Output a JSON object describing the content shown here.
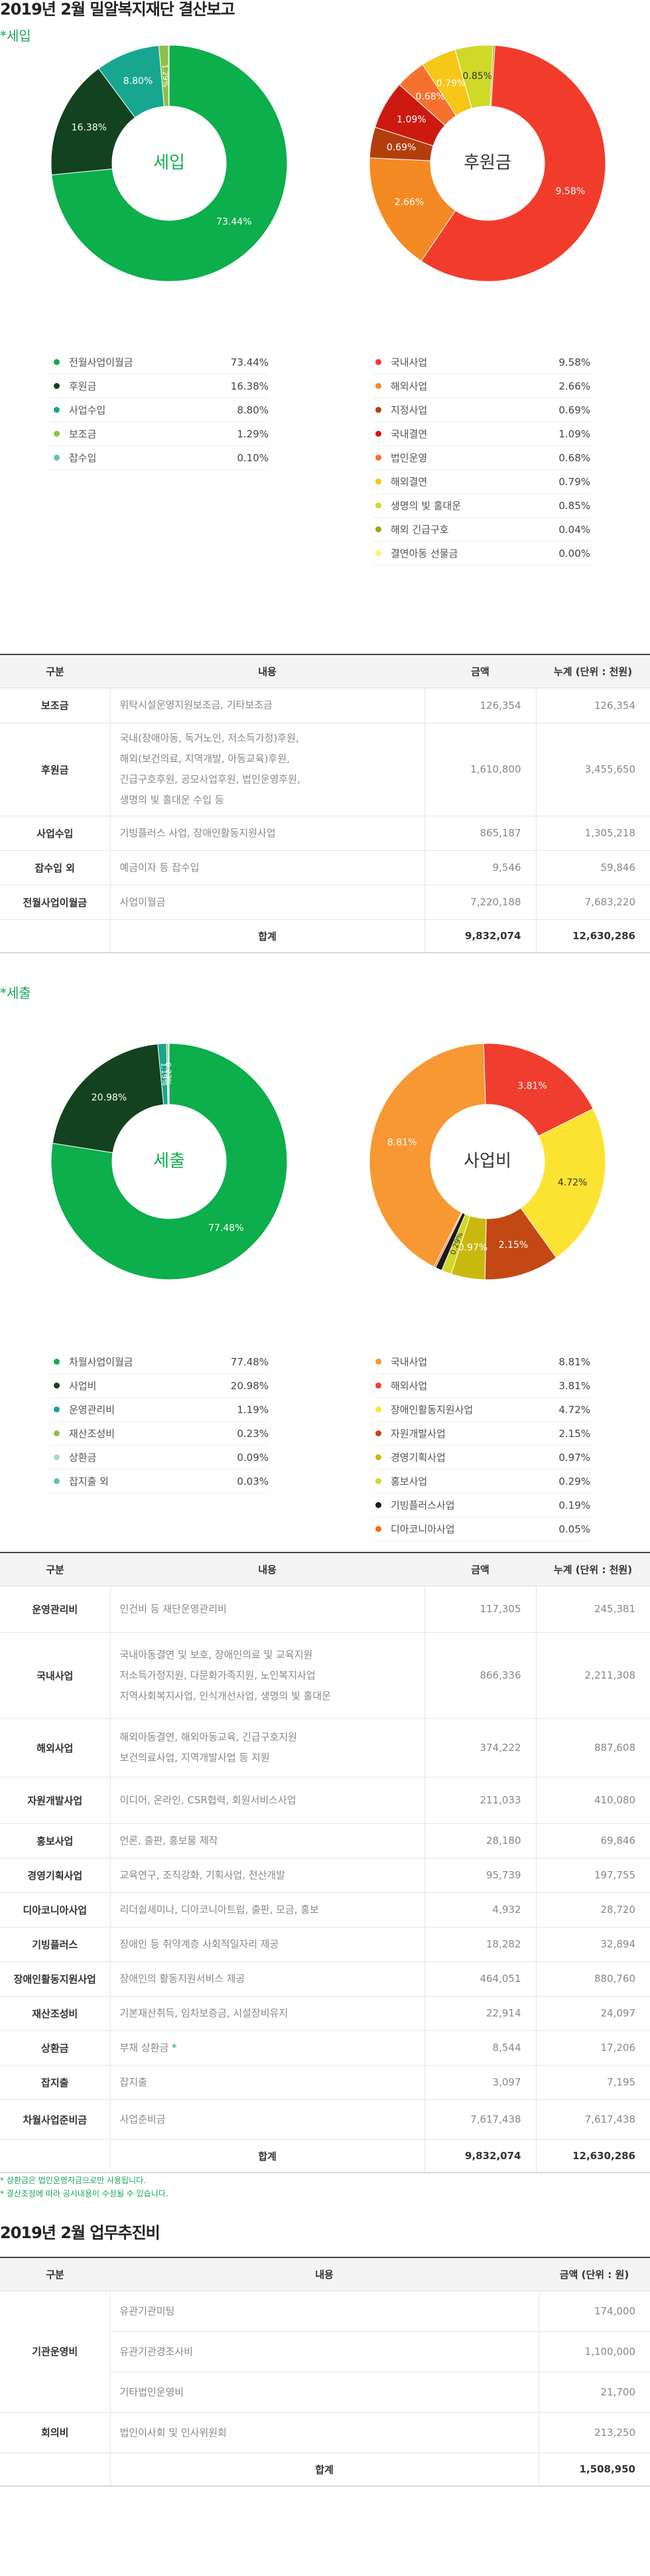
{
  "page_title": "2019년 2월 밀알복지재단 결산보고",
  "income": {
    "label": "*세입",
    "donut_main": {
      "center": "세입",
      "slices": [
        {
          "name": "전월사업이월금",
          "value": 73.44,
          "label": "73.44%",
          "color": "#0dae4c"
        },
        {
          "name": "후원금",
          "value": 16.38,
          "label": "16.38%",
          "color": "#12421f"
        },
        {
          "name": "사업수입",
          "value": 8.8,
          "label": "8.80%",
          "color": "#18a690"
        },
        {
          "name": "보조금",
          "value": 1.29,
          "label": "1.29%",
          "color": "#8fc043"
        },
        {
          "name": "잡수입",
          "value": 0.1,
          "label": "",
          "color": "#63c79f"
        }
      ]
    },
    "donut_sub": {
      "center": "후원금",
      "slices": [
        {
          "name": "국내사업",
          "value": 9.58,
          "label": "9.58%",
          "color": "#f13c2c"
        },
        {
          "name": "해외사업",
          "value": 2.66,
          "label": "2.66%",
          "color": "#f48a23"
        },
        {
          "name": "지정사업",
          "value": 0.69,
          "label": "0.69%",
          "color": "#b33e0d"
        },
        {
          "name": "국내결연",
          "value": 1.09,
          "label": "1.09%",
          "color": "#cd1a10"
        },
        {
          "name": "법인운영",
          "value": 0.68,
          "label": "0.68%",
          "color": "#f7712e"
        },
        {
          "name": "해외결연",
          "value": 0.79,
          "label": "0.79%",
          "color": "#f6c619"
        },
        {
          "name": "생명의 빛 홀대운",
          "value": 0.85,
          "label": "0.85%",
          "color": "#d0d82a"
        },
        {
          "name": "해외 긴급구호",
          "value": 0.04,
          "label": "",
          "color": "#a7a30a"
        },
        {
          "name": "결연아동 선물금",
          "value": 0.0,
          "label": "",
          "color": "#fdf07a"
        }
      ]
    },
    "table": {
      "headers": [
        "구분",
        "내용",
        "금액",
        "누계 (단위 : 천원)"
      ],
      "rows": [
        {
          "cat": "보조금",
          "desc": [
            "위탁시설운영지원보조금, 기타보조금"
          ],
          "amount": "126,354",
          "total": "126,354"
        },
        {
          "cat": "후원금",
          "desc": [
            "국내(장애아동, 독거노인, 저소득가정)후원,",
            "해외(보건의료, 지역개발, 아동교육)후원,",
            "긴급구호후원, 공모사업후원, 법인운영후원,",
            "생명의 빛 홀대운 수입 등"
          ],
          "amount": "1,610,800",
          "total": "3,455,650"
        },
        {
          "cat": "사업수입",
          "desc": [
            "기빙플러스 사업, 장애인활동지원사업"
          ],
          "amount": "865,187",
          "total": "1,305,218"
        },
        {
          "cat": "잡수입 외",
          "desc": [
            "예금이자 등 잡수입"
          ],
          "amount": "9,546",
          "total": "59,846"
        },
        {
          "cat": "전월사업이월금",
          "desc": [
            "사업이월금"
          ],
          "amount": "7,220,188",
          "total": "7,683,220"
        }
      ],
      "sum_label": "합계",
      "sum_amount": "9,832,074",
      "sum_total": "12,630,286"
    }
  },
  "expense": {
    "label": "*세출",
    "donut_main": {
      "center": "세출",
      "slices": [
        {
          "name": "차월사업이월금",
          "value": 77.48,
          "label": "77.48%",
          "color": "#0dae4c"
        },
        {
          "name": "사업비",
          "value": 20.98,
          "label": "20.98%",
          "color": "#12421f"
        },
        {
          "name": "운영관리비",
          "value": 1.19,
          "label": "1.19%",
          "color": "#18a690"
        },
        {
          "name": "재산조성비",
          "value": 0.23,
          "label": "0.23%",
          "color": "#8fc043"
        },
        {
          "name": "상환금",
          "value": 0.09,
          "label": "",
          "color": "#a8dccf"
        },
        {
          "name": "잡지출 외",
          "value": 0.03,
          "label": "",
          "color": "#63c79f"
        }
      ]
    },
    "donut_sub": {
      "center": "사업비",
      "slices": [
        {
          "name": "국내사업",
          "value": 8.81,
          "label": "8.81%",
          "color": "#f79833"
        },
        {
          "name": "해외사업",
          "value": 3.81,
          "label": "3.81%",
          "color": "#ef3d2f"
        },
        {
          "name": "장애인활동지원사업",
          "value": 4.72,
          "label": "4.72%",
          "color": "#fde331"
        },
        {
          "name": "자원개발사업",
          "value": 2.15,
          "label": "2.15%",
          "color": "#c44814"
        },
        {
          "name": "경영기획사업",
          "value": 0.97,
          "label": "0.97%",
          "color": "#c9b90f"
        },
        {
          "name": "홍보사업",
          "value": 0.29,
          "label": "0.29%",
          "color": "#d0d82a"
        },
        {
          "name": "기빙플러스사업",
          "value": 0.19,
          "label": "",
          "color": "#1a1a1a"
        },
        {
          "name": "디아코니아사업",
          "value": 0.05,
          "label": "",
          "color": "#f26a25"
        }
      ]
    },
    "table": {
      "headers": [
        "구분",
        "내용",
        "금액",
        "누계 (단위 : 천원)"
      ],
      "rows": [
        {
          "cat": "운영관리비",
          "desc": [
            "인건비 등 재단운영관리비"
          ],
          "amount": "117,305",
          "total": "245,381"
        },
        {
          "cat": "국내사업",
          "desc": [
            "국내아동결연 및 보호, 장애인의료 및 교육지원",
            "저소득가정지원, 다문화가족지원, 노인복지사업",
            "지역사회복지사업, 인식개선사업, 생명의 빛 홀대운"
          ],
          "amount": "866,336",
          "total": "2,211,308"
        },
        {
          "cat": "해외사업",
          "desc": [
            "해외아동결연, 해외아동교육, 긴급구호지원",
            "보건의료사업, 지역개발사업 등 지원"
          ],
          "amount": "374,222",
          "total": "887,608"
        },
        {
          "cat": "자원개발사업",
          "desc": [
            "이디어, 온라인, CSR협력, 회원서비스사업"
          ],
          "amount": "211,033",
          "total": "410,080"
        },
        {
          "cat": "홍보사업",
          "desc": [
            "언론, 출판, 홍보물 제작"
          ],
          "amount": "28,180",
          "total": "69,846"
        },
        {
          "cat": "경영기획사업",
          "desc": [
            "교육연구, 조직강화, 기획사업, 전산개발"
          ],
          "amount": "95,739",
          "total": "197,755"
        },
        {
          "cat": "디아코니아사업",
          "desc": [
            "리더쉽세미나, 디아코니아트립, 출판, 모금, 홍보"
          ],
          "amount": "4,932",
          "total": "28,720"
        },
        {
          "cat": "기빙플러스",
          "desc": [
            "장애인 등 취약계층 사회적일자리 제공"
          ],
          "amount": "18,282",
          "total": "32,894"
        },
        {
          "cat": "장애인활동지원사업",
          "desc": [
            "장애인의 활동지원서비스 제공"
          ],
          "amount": "464,051",
          "total": "880,760"
        },
        {
          "cat": "재산조성비",
          "desc": [
            "기본재산취득, 임차보증금, 시설장비유지"
          ],
          "amount": "22,914",
          "total": "24,097"
        },
        {
          "cat": "상환금",
          "desc": [
            "부채 상환금 *"
          ],
          "amount": "8,544",
          "total": "17,206"
        },
        {
          "cat": "잡지출",
          "desc": [
            "잡지출"
          ],
          "amount": "3,097",
          "total": "7,195"
        },
        {
          "cat": "차월사업준비금",
          "desc": [
            "사업준비금"
          ],
          "amount": "7,617,438",
          "total": "7,617,438"
        }
      ],
      "sum_label": "합계",
      "sum_amount": "9,832,074",
      "sum_total": "12,630,286"
    },
    "notes": [
      "* 상환금은 법인운영자금으로만 사용됩니다.",
      "* 결산조정에 따라 공시내용이 수정될 수 있습니다."
    ]
  },
  "operations": {
    "title": "2019년 2월 업무추진비",
    "headers": [
      "구분",
      "내용",
      "금액 (단위 : 원)"
    ],
    "groups": [
      {
        "cat": "기관운영비",
        "rows": [
          {
            "desc": "유관기관미팅",
            "amount": "174,000"
          },
          {
            "desc": "유관기관경조사비",
            "amount": "1,100,000"
          },
          {
            "desc": "기타법인운영비",
            "amount": "21,700"
          }
        ]
      },
      {
        "cat": "회의비",
        "rows": [
          {
            "desc": "법인이사회 및 인사위원회",
            "amount": "213,250"
          }
        ]
      }
    ],
    "sum_label": "합계",
    "sum_amount": "1,508,950"
  }
}
